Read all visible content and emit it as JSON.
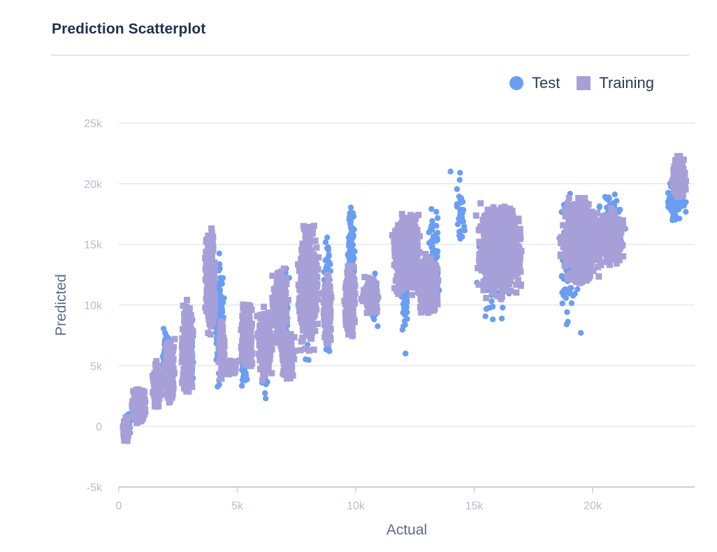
{
  "card": {
    "title": "Prediction Scatterplot"
  },
  "colors": {
    "test": "#6b9ef2",
    "training": "#a7a0d8",
    "grid": "#e6e8ec",
    "axis": "#c9d0da"
  },
  "chart_data": {
    "type": "scatter",
    "title": "",
    "xlabel": "Actual",
    "ylabel": "Predicted",
    "xlim": [
      0,
      24300
    ],
    "ylim": [
      -5000,
      25000
    ],
    "x_ticks": [
      0,
      5000,
      10000,
      15000,
      20000
    ],
    "x_tick_labels": [
      "0",
      "5k",
      "10k",
      "15k",
      "20k"
    ],
    "y_ticks": [
      25000,
      20000,
      15000,
      10000,
      5000,
      0,
      -5000
    ],
    "y_tick_labels": [
      "25k",
      "20k",
      "15k",
      "10k",
      "5k",
      "0",
      "-5k"
    ],
    "grid": true,
    "legend_position": "top-right",
    "series": [
      {
        "name": "Test",
        "marker": "circle",
        "clusters": [
          [
            300,
            500,
            -1200,
            1500,
            100
          ],
          [
            800,
            1200,
            200,
            3000,
            50
          ],
          [
            1800,
            2200,
            2500,
            8500,
            100
          ],
          [
            2800,
            3200,
            1000,
            11000,
            130
          ],
          [
            4000,
            4500,
            2000,
            16000,
            140
          ],
          [
            5100,
            5500,
            3000,
            8500,
            60
          ],
          [
            6000,
            6400,
            2300,
            9000,
            90
          ],
          [
            6800,
            7200,
            3500,
            14500,
            100
          ],
          [
            7800,
            8200,
            4000,
            18000,
            140
          ],
          [
            8600,
            9000,
            4500,
            17000,
            90
          ],
          [
            9600,
            10000,
            7000,
            20000,
            110
          ],
          [
            10500,
            11000,
            8000,
            13000,
            70
          ],
          [
            11800,
            12300,
            6000,
            18000,
            120
          ],
          [
            13000,
            13600,
            8000,
            19500,
            80
          ],
          [
            14200,
            14700,
            14000,
            21000,
            30
          ],
          [
            15000,
            16800,
            7500,
            19000,
            160
          ],
          [
            18500,
            19500,
            7800,
            20500,
            110
          ],
          [
            20000,
            21500,
            12800,
            20000,
            90
          ],
          [
            23000,
            24000,
            15800,
            21500,
            60
          ]
        ],
        "note_points": [
          [
            14000,
            21000
          ],
          [
            14400,
            20900
          ],
          [
            18900,
            8400
          ],
          [
            19500,
            7700
          ],
          [
            12100,
            6000
          ],
          [
            6200,
            2300
          ]
        ]
      },
      {
        "name": "Training",
        "marker": "square",
        "clusters": [
          [
            150,
            450,
            -1700,
            1000,
            130
          ],
          [
            500,
            1200,
            0,
            3300,
            260
          ],
          [
            1400,
            1800,
            1000,
            5500,
            160
          ],
          [
            1900,
            2400,
            1500,
            8200,
            260
          ],
          [
            2600,
            3200,
            1500,
            11000,
            300
          ],
          [
            3600,
            4100,
            6500,
            17000,
            380
          ],
          [
            4200,
            4500,
            3500,
            9000,
            120
          ],
          [
            4500,
            5000,
            4000,
            5600,
            90
          ],
          [
            5100,
            5700,
            4000,
            11000,
            240
          ],
          [
            5800,
            6500,
            3500,
            10500,
            280
          ],
          [
            6400,
            7200,
            6000,
            13500,
            240
          ],
          [
            6800,
            7500,
            3500,
            8000,
            160
          ],
          [
            7500,
            8500,
            6000,
            17200,
            520
          ],
          [
            8600,
            9000,
            6000,
            13000,
            160
          ],
          [
            9500,
            10000,
            7000,
            13500,
            260
          ],
          [
            10200,
            11000,
            9000,
            12500,
            180
          ],
          [
            11500,
            12800,
            10500,
            18000,
            700
          ],
          [
            12500,
            13600,
            9000,
            14500,
            360
          ],
          [
            15000,
            17200,
            10000,
            19000,
            900
          ],
          [
            18500,
            20500,
            11000,
            19500,
            700
          ],
          [
            20000,
            21500,
            13000,
            18500,
            300
          ],
          [
            23300,
            24000,
            18500,
            22500,
            200
          ]
        ]
      }
    ]
  }
}
